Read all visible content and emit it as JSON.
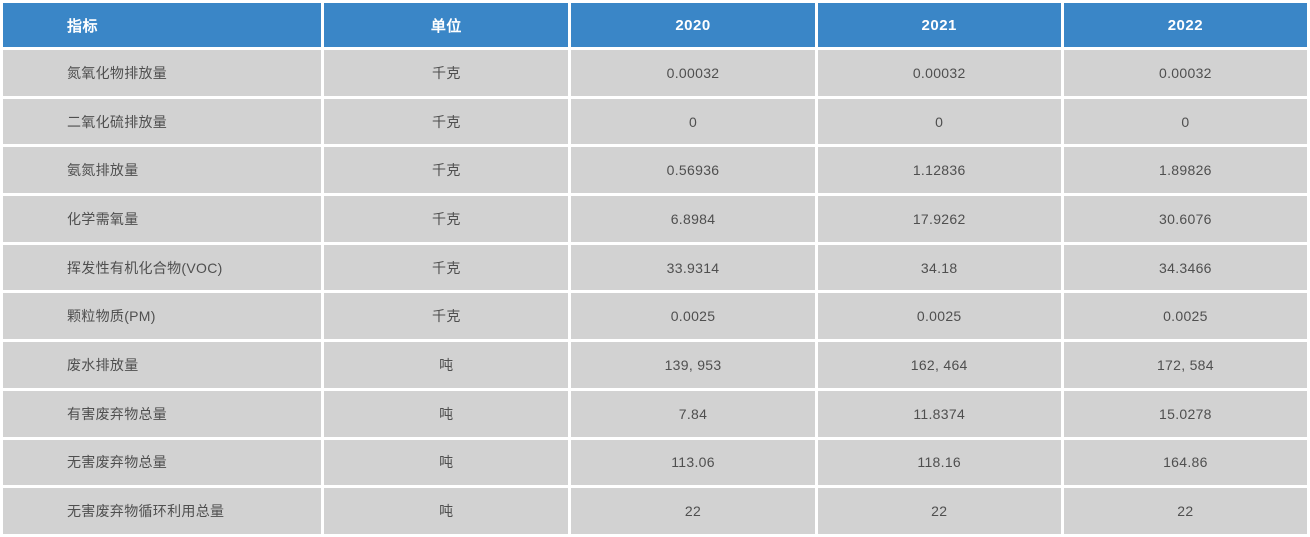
{
  "colors": {
    "header_bg": "#3a86c7",
    "header_text": "#ffffff",
    "row_bg": "#d2d2d2",
    "body_text": "#4f4f4f",
    "gap": "#ffffff"
  },
  "table": {
    "columns": [
      "指标",
      "单位",
      "2020",
      "2021",
      "2022"
    ],
    "rows": [
      [
        "氮氧化物排放量",
        "千克",
        "0.00032",
        "0.00032",
        "0.00032"
      ],
      [
        "二氧化硫排放量",
        "千克",
        "0",
        "0",
        "0"
      ],
      [
        "氨氮排放量",
        "千克",
        "0.56936",
        "1.12836",
        "1.89826"
      ],
      [
        "化学需氧量",
        "千克",
        "6.8984",
        "17.9262",
        "30.6076"
      ],
      [
        "挥发性有机化合物(VOC)",
        "千克",
        "33.9314",
        "34.18",
        "34.3466"
      ],
      [
        "颗粒物质(PM)",
        "千克",
        "0.0025",
        "0.0025",
        "0.0025"
      ],
      [
        "废水排放量",
        "吨",
        "139, 953",
        "162, 464",
        "172, 584"
      ],
      [
        "有害废弃物总量",
        "吨",
        "7.84",
        "11.8374",
        "15.0278"
      ],
      [
        "无害废弃物总量",
        "吨",
        "113.06",
        "118.16",
        "164.86"
      ],
      [
        "无害废弃物循环利用总量",
        "吨",
        "22",
        "22",
        "22"
      ]
    ]
  }
}
